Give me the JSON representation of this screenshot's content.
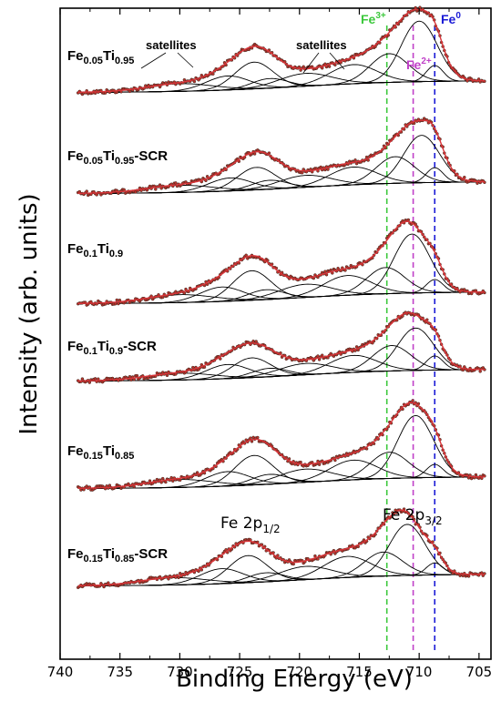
{
  "chart_data": {
    "type": "line",
    "xlabel": "Binding Energy (eV)",
    "ylabel": "Intensity (arb. units)",
    "xlim": [
      740,
      704
    ],
    "x_reversed": true,
    "x_ticks": [
      740,
      735,
      730,
      725,
      720,
      715,
      710,
      705
    ],
    "y_ticks_shown": false,
    "colors": {
      "data_points": "#b8322a",
      "data_outline": "#3a2a22",
      "fit_envelope": "#d9353a",
      "components": "#000000",
      "fe3_line": "#3cc83c",
      "fe2_line": "#c040c8",
      "fe0_line": "#1a1ad6"
    },
    "reference_lines": [
      {
        "label_base": "Fe",
        "label_sup": "3+",
        "x": 712.7,
        "color": "#3cc83c"
      },
      {
        "label_base": "Fe",
        "label_sup": "2+",
        "x": 710.5,
        "color": "#c040c8"
      },
      {
        "label_base": "Fe",
        "label_sup": "0",
        "x": 708.7,
        "color": "#1a1ad6"
      }
    ],
    "peak_labels": [
      {
        "base": "Fe 2p",
        "sub": "1/2",
        "x": 725.5
      },
      {
        "base": "Fe 2p",
        "sub": "3/2",
        "x": 710.7
      }
    ],
    "annotations": [
      {
        "text": "satellites",
        "x": 729.5
      },
      {
        "text": "satellites",
        "x": 718.5
      }
    ],
    "series": [
      {
        "parts": [
          [
            "Fe",
            ""
          ],
          [
            "0.05",
            "sub"
          ],
          [
            "Ti",
            ""
          ],
          [
            "0.95",
            "sub"
          ]
        ],
        "components": [
          {
            "c": 708.7,
            "a": 0.25,
            "w": 0.7
          },
          {
            "c": 710.0,
            "a": 0.95,
            "w": 1.5
          },
          {
            "c": 712.5,
            "a": 0.45,
            "w": 1.6
          },
          {
            "c": 715.5,
            "a": 0.3,
            "w": 2.0
          },
          {
            "c": 719.5,
            "a": 0.2,
            "w": 2.2
          },
          {
            "c": 722.5,
            "a": 0.15,
            "w": 1.5
          },
          {
            "c": 723.8,
            "a": 0.42,
            "w": 1.6
          },
          {
            "c": 726.0,
            "a": 0.22,
            "w": 1.8
          },
          {
            "c": 730.0,
            "a": 0.12,
            "w": 2.8
          }
        ]
      },
      {
        "parts": [
          [
            "Fe",
            ""
          ],
          [
            "0.05",
            "sub"
          ],
          [
            "Ti",
            ""
          ],
          [
            "0.95",
            "sub"
          ],
          [
            "-SCR",
            ""
          ]
        ],
        "components": [
          {
            "c": 708.7,
            "a": 0.25,
            "w": 0.7
          },
          {
            "c": 709.8,
            "a": 0.8,
            "w": 1.5
          },
          {
            "c": 712.0,
            "a": 0.45,
            "w": 1.6
          },
          {
            "c": 715.5,
            "a": 0.3,
            "w": 2.0
          },
          {
            "c": 719.5,
            "a": 0.2,
            "w": 2.2
          },
          {
            "c": 722.5,
            "a": 0.15,
            "w": 1.5
          },
          {
            "c": 723.6,
            "a": 0.38,
            "w": 1.6
          },
          {
            "c": 725.8,
            "a": 0.22,
            "w": 1.8
          },
          {
            "c": 730.0,
            "a": 0.12,
            "w": 2.8
          }
        ]
      },
      {
        "parts": [
          [
            "Fe",
            ""
          ],
          [
            "0.1",
            "sub"
          ],
          [
            "Ti",
            ""
          ],
          [
            "0.9",
            "sub"
          ]
        ],
        "components": [
          {
            "c": 708.7,
            "a": 0.2,
            "w": 0.7
          },
          {
            "c": 710.6,
            "a": 0.9,
            "w": 1.5
          },
          {
            "c": 712.8,
            "a": 0.4,
            "w": 1.6
          },
          {
            "c": 716.0,
            "a": 0.3,
            "w": 2.0
          },
          {
            "c": 719.5,
            "a": 0.2,
            "w": 2.2
          },
          {
            "c": 722.8,
            "a": 0.15,
            "w": 1.5
          },
          {
            "c": 724.0,
            "a": 0.45,
            "w": 1.6
          },
          {
            "c": 726.5,
            "a": 0.22,
            "w": 1.8
          },
          {
            "c": 730.0,
            "a": 0.12,
            "w": 2.8
          }
        ]
      },
      {
        "parts": [
          [
            "Fe",
            ""
          ],
          [
            "0.1",
            "sub"
          ],
          [
            "Ti",
            ""
          ],
          [
            "0.9",
            "sub"
          ],
          [
            "-SCR",
            ""
          ]
        ],
        "components": [
          {
            "c": 708.7,
            "a": 0.25,
            "w": 0.7
          },
          {
            "c": 710.3,
            "a": 0.75,
            "w": 1.5
          },
          {
            "c": 712.3,
            "a": 0.45,
            "w": 1.6
          },
          {
            "c": 715.5,
            "a": 0.3,
            "w": 2.0
          },
          {
            "c": 719.5,
            "a": 0.2,
            "w": 2.2
          },
          {
            "c": 722.5,
            "a": 0.15,
            "w": 1.5
          },
          {
            "c": 724.0,
            "a": 0.35,
            "w": 1.6
          },
          {
            "c": 726.0,
            "a": 0.25,
            "w": 1.8
          },
          {
            "c": 730.0,
            "a": 0.12,
            "w": 2.8
          }
        ]
      },
      {
        "parts": [
          [
            "Fe",
            ""
          ],
          [
            "0.15",
            "sub"
          ],
          [
            "Ti",
            ""
          ],
          [
            "0.85",
            "sub"
          ]
        ],
        "components": [
          {
            "c": 708.7,
            "a": 0.2,
            "w": 0.7
          },
          {
            "c": 710.3,
            "a": 0.95,
            "w": 1.5
          },
          {
            "c": 712.5,
            "a": 0.4,
            "w": 1.6
          },
          {
            "c": 715.5,
            "a": 0.3,
            "w": 2.0
          },
          {
            "c": 719.5,
            "a": 0.2,
            "w": 2.2
          },
          {
            "c": 722.5,
            "a": 0.15,
            "w": 1.5
          },
          {
            "c": 723.8,
            "a": 0.45,
            "w": 1.6
          },
          {
            "c": 726.0,
            "a": 0.22,
            "w": 1.8
          },
          {
            "c": 730.0,
            "a": 0.12,
            "w": 2.8
          }
        ]
      },
      {
        "parts": [
          [
            "Fe",
            ""
          ],
          [
            "0.15",
            "sub"
          ],
          [
            "Ti",
            ""
          ],
          [
            "0.85",
            "sub"
          ],
          [
            "-SCR",
            ""
          ]
        ],
        "components": [
          {
            "c": 708.7,
            "a": 0.2,
            "w": 0.7
          },
          {
            "c": 711.0,
            "a": 0.85,
            "w": 1.5
          },
          {
            "c": 713.0,
            "a": 0.4,
            "w": 1.6
          },
          {
            "c": 716.0,
            "a": 0.35,
            "w": 2.0
          },
          {
            "c": 719.5,
            "a": 0.22,
            "w": 2.2
          },
          {
            "c": 722.8,
            "a": 0.15,
            "w": 1.5
          },
          {
            "c": 724.3,
            "a": 0.45,
            "w": 1.6
          },
          {
            "c": 726.5,
            "a": 0.25,
            "w": 1.8
          },
          {
            "c": 730.5,
            "a": 0.12,
            "w": 2.8
          }
        ]
      }
    ]
  }
}
